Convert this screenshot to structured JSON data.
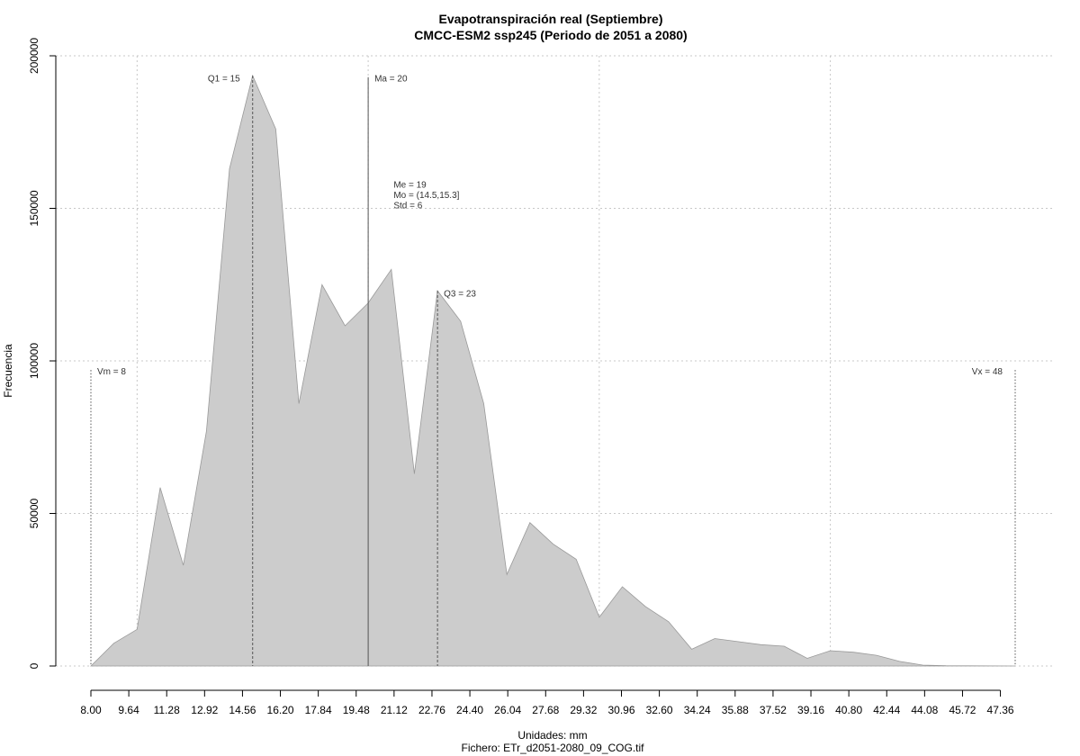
{
  "chart_data": {
    "type": "area",
    "title": "Evapotranspiración real (Septiembre)",
    "subtitle": "CMCC-ESM2 ssp245 (Periodo de 2051 a 2080)",
    "xlabel": "Unidades: mm",
    "ylabel": "Frecuencia",
    "caption": "Fichero: ETr_d2051-2080_09_COG.tif",
    "xlim": [
      8,
      48
    ],
    "ylim": [
      0,
      200000
    ],
    "x_ticks": [
      "8.00",
      "9.64",
      "11.28",
      "12.92",
      "14.56",
      "16.20",
      "17.84",
      "19.48",
      "21.12",
      "22.76",
      "24.40",
      "26.04",
      "27.68",
      "29.32",
      "30.96",
      "32.60",
      "34.24",
      "35.88",
      "37.52",
      "39.16",
      "40.80",
      "42.44",
      "44.08",
      "45.72",
      "47.36"
    ],
    "y_ticks": [
      "0",
      "50000",
      "100000",
      "150000",
      "200000"
    ],
    "y_tick_values": [
      0,
      50000,
      100000,
      150000,
      200000
    ],
    "x_grid": [
      10,
      20,
      30,
      40
    ],
    "grid": true,
    "fill_color": "#cccccc",
    "line_color": "#999999",
    "series": [
      {
        "x": [
          8,
          9,
          10,
          11,
          12,
          13,
          14,
          15,
          16,
          17,
          18,
          19,
          20,
          21,
          22,
          23,
          24,
          25,
          26,
          27,
          28,
          29,
          30,
          31,
          32,
          33,
          34,
          35,
          36,
          37,
          38,
          39,
          40,
          41,
          42,
          43,
          44,
          45,
          46,
          47,
          48
        ],
        "values": [
          0,
          7500,
          12000,
          58500,
          33000,
          77000,
          163000,
          193500,
          176000,
          86000,
          125000,
          111500,
          119000,
          130000,
          63000,
          123000,
          113000,
          86000,
          30000,
          47000,
          40000,
          35000,
          16000,
          26000,
          19500,
          14500,
          5500,
          9000,
          8000,
          7000,
          6500,
          2500,
          5000,
          4500,
          3500,
          1500,
          300,
          100,
          50,
          20,
          0
        ]
      }
    ],
    "vlines": [
      {
        "label": "Vm = 8",
        "x": 8,
        "y_top": 97000,
        "label_y": 96500,
        "style": "dotted",
        "anchor": "start"
      },
      {
        "label": "Q1 = 15",
        "x": 15,
        "y_top": 193500,
        "label_y": 192500,
        "style": "dashed",
        "anchor": "end"
      },
      {
        "label": "Ma = 20",
        "x": 20,
        "y_top": 193000,
        "label_y": 192500,
        "style": "solid",
        "anchor": "start"
      },
      {
        "label": "Q3 = 23",
        "x": 23,
        "y_top": 123000,
        "label_y": 122000,
        "style": "dashed",
        "anchor": "start"
      },
      {
        "label": "Vx = 48",
        "x": 48,
        "y_top": 97000,
        "label_y": 96500,
        "style": "dotted",
        "anchor": "end"
      }
    ],
    "stats": {
      "lines": [
        "Me = 19",
        "Mo = (14.5,15.3]",
        "Std = 6"
      ],
      "x": 21.1,
      "y": 158000
    }
  }
}
